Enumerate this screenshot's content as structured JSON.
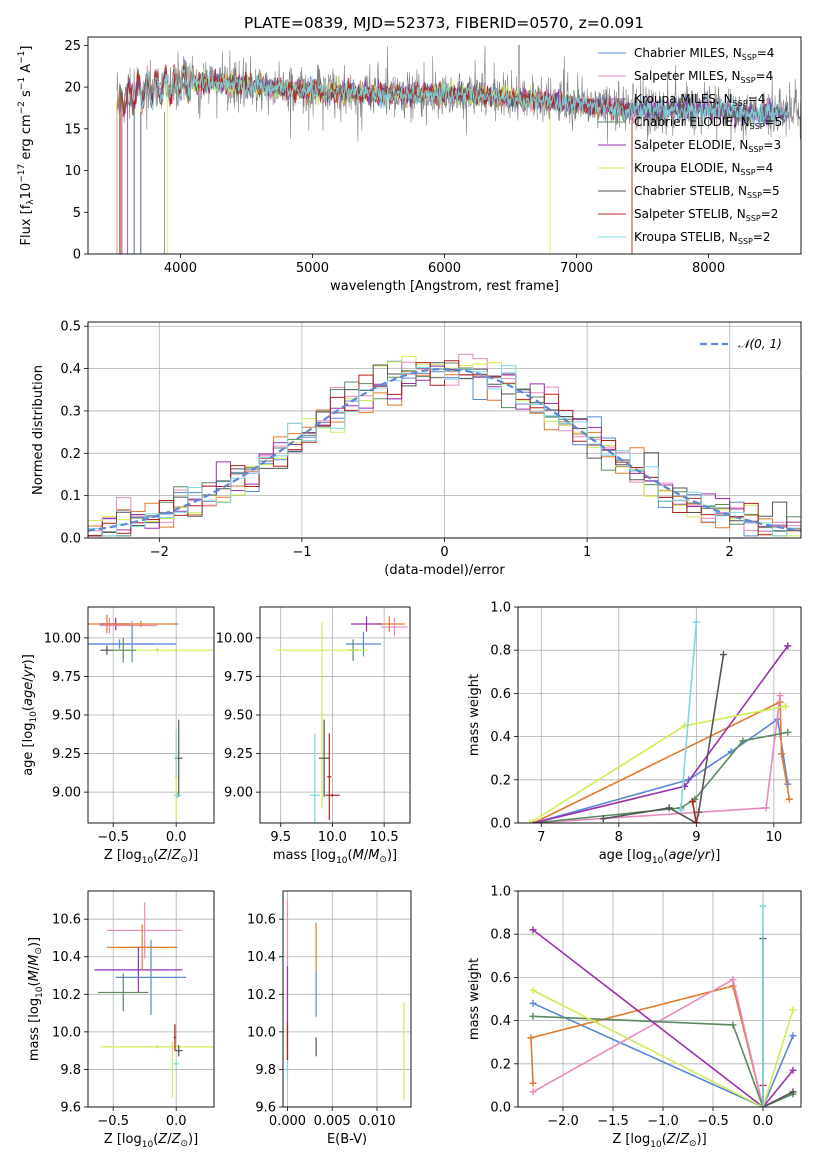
{
  "colors": {
    "chabrier_miles": "#5b87d6",
    "salpeter_miles": "#e07a2c",
    "kroupa_miles": "#5a8a60",
    "chabrier_elodie": "#5a8a60",
    "salpeter_elodie": "#9b30b0",
    "kroupa_elodie": "#ccef55",
    "chabrier_stelib": "#555555",
    "salpeter_stelib": "#b22222",
    "kroupa_stelib": "#7fd8e0",
    "pink": "#e88ac0",
    "gray": "#7f7f7f",
    "normal": "#5b87d6"
  },
  "chart_data": [
    {
      "id": "spectrum",
      "type": "line",
      "title": "PLATE=0839, MJD=52373, FIBERID=0570, z=0.091",
      "xlabel": "wavelength [Angstrom, rest frame]",
      "ylabel": "Flux [fλ10⁻¹⁷ erg cm⁻² s⁻¹ A⁻¹]",
      "xlim": [
        3300,
        8700
      ],
      "ylim": [
        0,
        26
      ],
      "xticks": [
        "4000",
        "5000",
        "6000",
        "7000",
        "8000"
      ],
      "yticks": [
        "0",
        "5",
        "10",
        "15",
        "20",
        "25"
      ],
      "grid": false,
      "legend_position": "top-right",
      "legend": [
        {
          "text": "Chabrier MILES, N",
          "sub": "SSP",
          "tail": "=4",
          "color": "#5b87d6"
        },
        {
          "text": "Salpeter MILES, N",
          "sub": "SSP",
          "tail": "=4",
          "color": "#e88ac0"
        },
        {
          "text": "Kroupa MILES, N",
          "sub": "SSP",
          "tail": "=4",
          "color": "#7f7f7f"
        },
        {
          "text": "Chabrier ELODIE, N",
          "sub": "SSP",
          "tail": "=5",
          "color": "#5a8a60"
        },
        {
          "text": "Salpeter ELODIE, N",
          "sub": "SSP",
          "tail": "=3",
          "color": "#9b30b0"
        },
        {
          "text": "Kroupa ELODIE, N",
          "sub": "SSP",
          "tail": "=4",
          "color": "#ccef55"
        },
        {
          "text": "Chabrier STELIB, N",
          "sub": "SSP",
          "tail": "=5",
          "color": "#555555"
        },
        {
          "text": "Salpeter STELIB, N",
          "sub": "SSP",
          "tail": "=2",
          "color": "#b22222"
        },
        {
          "text": "Kroupa STELIB, N",
          "sub": "SSP",
          "tail": "=2",
          "color": "#7fd8e0"
        }
      ],
      "continuum": [
        [
          3500,
          18
        ],
        [
          3700,
          19.5
        ],
        [
          4000,
          20.5
        ],
        [
          4300,
          20.5
        ],
        [
          4600,
          20
        ],
        [
          5000,
          19.5
        ],
        [
          5500,
          19.2
        ],
        [
          6000,
          19.2
        ],
        [
          6500,
          18.7
        ],
        [
          7000,
          18
        ],
        [
          7400,
          17.3
        ],
        [
          7700,
          17.2
        ],
        [
          8000,
          17.3
        ],
        [
          8300,
          16.8
        ],
        [
          8700,
          16.9
        ]
      ]
    },
    {
      "id": "residuals",
      "type": "step",
      "xlabel": "(data-model)/error",
      "ylabel": "Normed distribution",
      "xlim": [
        -2.5,
        2.5
      ],
      "ylim": [
        0,
        0.51
      ],
      "xticks": [
        "−2",
        "−1",
        "0",
        "1",
        "2"
      ],
      "yticks": [
        "0.0",
        "0.1",
        "0.2",
        "0.3",
        "0.4",
        "0.5"
      ],
      "grid": true,
      "legend_position": "top-right",
      "legend": [
        {
          "text": "𝒩(0, 1)",
          "color": "#5b87d6"
        }
      ],
      "bin_width": 0.1
    },
    {
      "id": "age_vs_z",
      "type": "errorbar",
      "xlabel": "Z [log₁₀(Z/Z⊙)]",
      "ylabel": "age  [log₁₀(age/yr)]",
      "xlim": [
        -0.7,
        0.3
      ],
      "ylim": [
        8.8,
        10.2
      ],
      "xticks": [
        "−0.5",
        "0.0"
      ],
      "yticks": [
        "9.00",
        "9.25",
        "9.50",
        "9.75",
        "10.00"
      ],
      "grid": true,
      "points": [
        {
          "x": -0.55,
          "y": 10.09,
          "xerr": 0.15,
          "yerr": 0.06,
          "color": "#e07a2c"
        },
        {
          "x": -0.53,
          "y": 10.08,
          "xerr": 0.08,
          "yerr": 0.05,
          "color": "#e88ac0"
        },
        {
          "x": -0.48,
          "y": 10.09,
          "xerr": 0.12,
          "yerr": 0.04,
          "color": "#9b30b0"
        },
        {
          "x": -0.35,
          "y": 10.08,
          "xerr": 0.2,
          "yerr": 0.03,
          "color": "#e88ac0"
        },
        {
          "x": -0.28,
          "y": 10.09,
          "xerr": 0.3,
          "yerr": 0.02,
          "color": "#e07a2c"
        },
        {
          "x": -0.45,
          "y": 9.96,
          "xerr": 0.28,
          "yerr": 0.03,
          "color": "#5b87d6"
        },
        {
          "x": -0.35,
          "y": 9.96,
          "xerr": 0.35,
          "yerr": 0.12,
          "color": "#5b87d6"
        },
        {
          "x": -0.15,
          "y": 9.92,
          "xerr": 0.45,
          "yerr": 0.02,
          "color": "#ccef55"
        },
        {
          "x": -0.55,
          "y": 9.92,
          "xerr": 0.05,
          "yerr": 0.03,
          "color": "#555555"
        },
        {
          "x": -0.42,
          "y": 9.92,
          "xerr": 0.1,
          "yerr": 0.08,
          "color": "#5a8a60"
        },
        {
          "x": 0.02,
          "y": 9.22,
          "xerr": 0.03,
          "yerr": 0.25,
          "color": "#555555"
        },
        {
          "x": 0.0,
          "y": 9.1,
          "xerr": 0.01,
          "yerr": 0.28,
          "color": "#ccef55"
        },
        {
          "x": 0.0,
          "y": 9.25,
          "xerr": 0.01,
          "yerr": 0.15,
          "color": "#7fd8e0"
        },
        {
          "x": 0.01,
          "y": 8.98,
          "xerr": 0.03,
          "yerr": 0.02,
          "color": "#7fd8e0"
        }
      ]
    },
    {
      "id": "age_vs_mass",
      "type": "errorbar",
      "xlabel": "mass [log₁₀(M/M⊙)]",
      "ylabel": "",
      "xlim": [
        9.3,
        10.75
      ],
      "ylim": [
        8.8,
        10.2
      ],
      "xticks": [
        "9.5",
        "10.0",
        "10.5"
      ],
      "yticks": [
        "9.00",
        "9.25",
        "9.50",
        "9.75",
        "10.00"
      ],
      "grid": true,
      "points": [
        {
          "x": 10.55,
          "y": 10.09,
          "xerr": 0.15,
          "yerr": 0.05,
          "color": "#e07a2c"
        },
        {
          "x": 10.6,
          "y": 10.07,
          "xerr": 0.13,
          "yerr": 0.06,
          "color": "#e88ac0"
        },
        {
          "x": 10.33,
          "y": 10.09,
          "xerr": 0.15,
          "yerr": 0.05,
          "color": "#9b30b0"
        },
        {
          "x": 10.3,
          "y": 9.96,
          "xerr": 0.17,
          "yerr": 0.08,
          "color": "#5b87d6"
        },
        {
          "x": 10.2,
          "y": 9.92,
          "xerr": 0.05,
          "yerr": 0.07,
          "color": "#5a8a60"
        },
        {
          "x": 9.9,
          "y": 9.92,
          "xerr": 0.45,
          "yerr": 0.01,
          "color": "#ccef55"
        },
        {
          "x": 9.9,
          "y": 9.5,
          "xerr": 0.01,
          "yerr": 0.6,
          "color": "#ccef55"
        },
        {
          "x": 9.92,
          "y": 9.22,
          "xerr": 0.05,
          "yerr": 0.25,
          "color": "#555555"
        },
        {
          "x": 9.97,
          "y": 9.1,
          "xerr": 0.02,
          "yerr": 0.28,
          "color": "#b22222"
        },
        {
          "x": 10.0,
          "y": 8.98,
          "xerr": 0.07,
          "yerr": 0.01,
          "color": "#b22222"
        },
        {
          "x": 9.83,
          "y": 8.98,
          "xerr": 0.05,
          "yerr": 0.4,
          "color": "#7fd8e0"
        }
      ]
    },
    {
      "id": "mass_weight_vs_age",
      "type": "line",
      "xlabel": "age  [log₁₀(age/yr)]",
      "ylabel": "mass weight",
      "xlim": [
        6.7,
        10.35
      ],
      "ylim": [
        0,
        1
      ],
      "xticks": [
        "7",
        "8",
        "9",
        "10"
      ],
      "yticks": [
        "0.0",
        "0.2",
        "0.4",
        "0.6",
        "0.8",
        "1.0"
      ],
      "grid": true,
      "series": [
        {
          "color": "#5b87d6",
          "points": [
            [
              6.9,
              0.0
            ],
            [
              8.9,
              0.2
            ],
            [
              9.45,
              0.33
            ],
            [
              10.05,
              0.48
            ],
            [
              10.18,
              0.18
            ]
          ]
        },
        {
          "color": "#e07a2c",
          "points": [
            [
              6.9,
              0.0
            ],
            [
              10.08,
              0.56
            ],
            [
              10.1,
              0.32
            ],
            [
              10.2,
              0.11
            ]
          ]
        },
        {
          "color": "#e88ac0",
          "points": [
            [
              6.9,
              0.0
            ],
            [
              9.9,
              0.07
            ],
            [
              10.08,
              0.59
            ]
          ]
        },
        {
          "color": "#5a8a60",
          "points": [
            [
              6.9,
              0.0
            ],
            [
              8.8,
              0.07
            ],
            [
              8.98,
              0.11
            ],
            [
              9.6,
              0.38
            ],
            [
              10.18,
              0.42
            ]
          ]
        },
        {
          "color": "#9b30b0",
          "points": [
            [
              6.9,
              0.0
            ],
            [
              8.85,
              0.17
            ],
            [
              10.18,
              0.82
            ]
          ]
        },
        {
          "color": "#ccef55",
          "points": [
            [
              6.85,
              0.0
            ],
            [
              8.85,
              0.45
            ],
            [
              10.15,
              0.54
            ]
          ]
        },
        {
          "color": "#555555",
          "points": [
            [
              7.8,
              0.02
            ],
            [
              8.65,
              0.07
            ],
            [
              9.0,
              0.0
            ],
            [
              9.03,
              0.05
            ],
            [
              9.35,
              0.78
            ]
          ]
        },
        {
          "color": "#b22222",
          "points": [
            [
              8.95,
              0.1
            ],
            [
              9.0,
              0.0
            ]
          ]
        },
        {
          "color": "#7fd8e0",
          "points": [
            [
              8.8,
              0.06
            ],
            [
              9.0,
              0.93
            ]
          ]
        }
      ]
    },
    {
      "id": "mass_vs_z",
      "type": "errorbar",
      "xlabel": "Z [log₁₀(Z/Z⊙)]",
      "ylabel": "mass [log₁₀(M/M⊙)]",
      "xlim": [
        -0.7,
        0.3
      ],
      "ylim": [
        9.6,
        10.75
      ],
      "xticks": [
        "−0.5",
        "0.0"
      ],
      "yticks": [
        "9.6",
        "9.8",
        "10.0",
        "10.2",
        "10.4",
        "10.6"
      ],
      "grid": true,
      "points": [
        {
          "x": -0.25,
          "y": 10.54,
          "xerr": 0.3,
          "yerr": 0.15,
          "color": "#e88ac0"
        },
        {
          "x": -0.27,
          "y": 10.45,
          "xerr": 0.28,
          "yerr": 0.12,
          "color": "#e07a2c"
        },
        {
          "x": -0.3,
          "y": 10.33,
          "xerr": 0.35,
          "yerr": 0.12,
          "color": "#9b30b0"
        },
        {
          "x": -0.2,
          "y": 10.29,
          "xerr": 0.28,
          "yerr": 0.2,
          "color": "#5b87d6"
        },
        {
          "x": -0.42,
          "y": 10.21,
          "xerr": 0.2,
          "yerr": 0.1,
          "color": "#5a8a60"
        },
        {
          "x": -0.15,
          "y": 9.92,
          "xerr": 0.45,
          "yerr": 0.01,
          "color": "#ccef55"
        },
        {
          "x": -0.03,
          "y": 9.8,
          "xerr": 0.01,
          "yerr": 0.15,
          "color": "#ccef55"
        },
        {
          "x": 0.02,
          "y": 9.9,
          "xerr": 0.03,
          "yerr": 0.03,
          "color": "#555555"
        },
        {
          "x": -0.01,
          "y": 9.97,
          "xerr": 0.01,
          "yerr": 0.07,
          "color": "#b22222"
        },
        {
          "x": 0.0,
          "y": 9.83,
          "xerr": 0.02,
          "yerr": 0.02,
          "color": "#7fd8e0"
        }
      ]
    },
    {
      "id": "mass_vs_ebv",
      "type": "errorbar",
      "xlabel": "E(B-V)",
      "ylabel": "",
      "xlim": [
        -0.0005,
        0.0138
      ],
      "ylim": [
        9.6,
        10.75
      ],
      "xticks": [
        "0.000",
        "0.005",
        "0.010"
      ],
      "yticks": [
        "9.6",
        "9.8",
        "10.0",
        "10.2",
        "10.4",
        "10.6"
      ],
      "grid": true,
      "points": [
        {
          "x": 0.0,
          "y": 10.3,
          "xerr": 0.0,
          "yerr": 0.4,
          "color": "#e88ac0"
        },
        {
          "x": 0.0,
          "y": 10.1,
          "xerr": 0.0,
          "yerr": 0.25,
          "color": "#9b30b0"
        },
        {
          "x": 0.0,
          "y": 9.95,
          "xerr": 0.0,
          "yerr": 0.1,
          "color": "#b22222"
        },
        {
          "x": 0.0,
          "y": 9.8,
          "xerr": 0.0,
          "yerr": 0.05,
          "color": "#7fd8e0"
        },
        {
          "x": 0.0032,
          "y": 10.45,
          "xerr": 0.0,
          "yerr": 0.13,
          "color": "#e07a2c"
        },
        {
          "x": 0.0032,
          "y": 10.2,
          "xerr": 0.0,
          "yerr": 0.12,
          "color": "#5b87d6"
        },
        {
          "x": 0.0032,
          "y": 9.92,
          "xerr": 0.0,
          "yerr": 0.05,
          "color": "#555555"
        },
        {
          "x": 0.013,
          "y": 9.9,
          "xerr": 0.0,
          "yerr": 0.26,
          "color": "#ccef55"
        }
      ]
    },
    {
      "id": "mass_weight_vs_z",
      "type": "line",
      "xlabel": "Z [log₁₀(Z/Z⊙)]",
      "ylabel": "mass weight",
      "xlim": [
        -2.45,
        0.38
      ],
      "ylim": [
        0,
        1
      ],
      "xticks": [
        "−2.0",
        "−1.5",
        "−1.0",
        "−0.5",
        "0.0"
      ],
      "yticks": [
        "0.0",
        "0.2",
        "0.4",
        "0.6",
        "0.8",
        "1.0"
      ],
      "grid": true,
      "series": [
        {
          "color": "#5b87d6",
          "points": [
            [
              -2.3,
              0.48
            ],
            [
              0.0,
              0.0
            ],
            [
              0.3,
              0.33
            ]
          ]
        },
        {
          "color": "#e07a2c",
          "points": [
            [
              -2.3,
              0.11
            ],
            [
              -2.32,
              0.32
            ],
            [
              -0.3,
              0.56
            ],
            [
              0.0,
              0.0
            ]
          ]
        },
        {
          "color": "#e88ac0",
          "points": [
            [
              -2.3,
              0.07
            ],
            [
              -0.3,
              0.59
            ],
            [
              0.0,
              0.0
            ]
          ]
        },
        {
          "color": "#5a8a60",
          "points": [
            [
              -2.3,
              0.42
            ],
            [
              -0.3,
              0.38
            ],
            [
              0.0,
              0.0
            ],
            [
              0.3,
              0.06
            ]
          ]
        },
        {
          "color": "#9b30b0",
          "points": [
            [
              -2.3,
              0.82
            ],
            [
              0.0,
              0.0
            ],
            [
              0.3,
              0.17
            ]
          ]
        },
        {
          "color": "#ccef55",
          "points": [
            [
              -2.3,
              0.54
            ],
            [
              0.0,
              0.0
            ],
            [
              0.3,
              0.45
            ]
          ]
        },
        {
          "color": "#555555",
          "points": [
            [
              0.0,
              0.78
            ],
            [
              0.0,
              0.0
            ],
            [
              0.3,
              0.07
            ]
          ]
        },
        {
          "color": "#b22222",
          "points": [
            [
              0.0,
              0.1
            ],
            [
              0.0,
              0.0
            ]
          ]
        },
        {
          "color": "#7fd8e0",
          "points": [
            [
              0.0,
              0.93
            ],
            [
              0.0,
              0.0
            ]
          ]
        }
      ]
    }
  ]
}
